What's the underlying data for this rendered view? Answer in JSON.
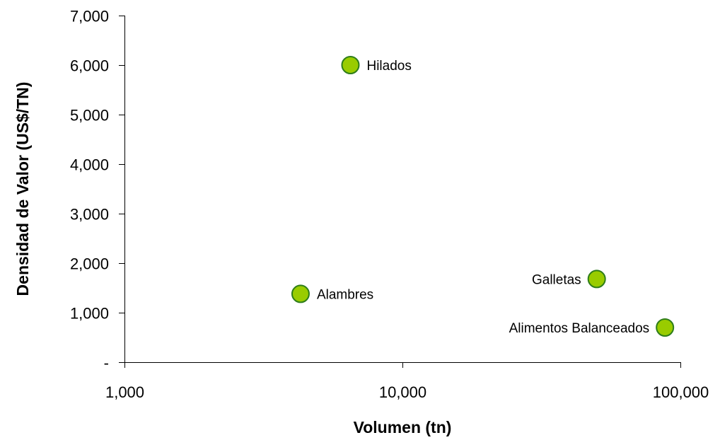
{
  "chart_data": {
    "type": "scatter",
    "title": "",
    "xlabel": "Volumen (tn)",
    "ylabel": "Densidad de Valor (US$/TN)",
    "x_scale": "log",
    "xlim": [
      1000,
      100000
    ],
    "ylim": [
      0,
      7000
    ],
    "x_ticks": [
      1000,
      10000,
      100000
    ],
    "x_tick_labels": [
      "1,000",
      "10,000",
      "100,000"
    ],
    "y_ticks": [
      0,
      1000,
      2000,
      3000,
      4000,
      5000,
      6000,
      7000
    ],
    "y_tick_labels": [
      "-",
      "1,000",
      "2,000",
      "3,000",
      "4,000",
      "5,000",
      "6,000",
      "7,000"
    ],
    "grid": false,
    "marker_color": "#99cc00",
    "marker_edge_color": "#2e7d1a",
    "points": [
      {
        "label": "Hilados",
        "x": 6500,
        "y": 6000,
        "label_side": "right"
      },
      {
        "label": "Alambres",
        "x": 4300,
        "y": 1380,
        "label_side": "right"
      },
      {
        "label": "Galletas",
        "x": 50000,
        "y": 1680,
        "label_side": "left"
      },
      {
        "label": "Alimentos Balanceados",
        "x": 88000,
        "y": 700,
        "label_side": "left"
      }
    ]
  }
}
